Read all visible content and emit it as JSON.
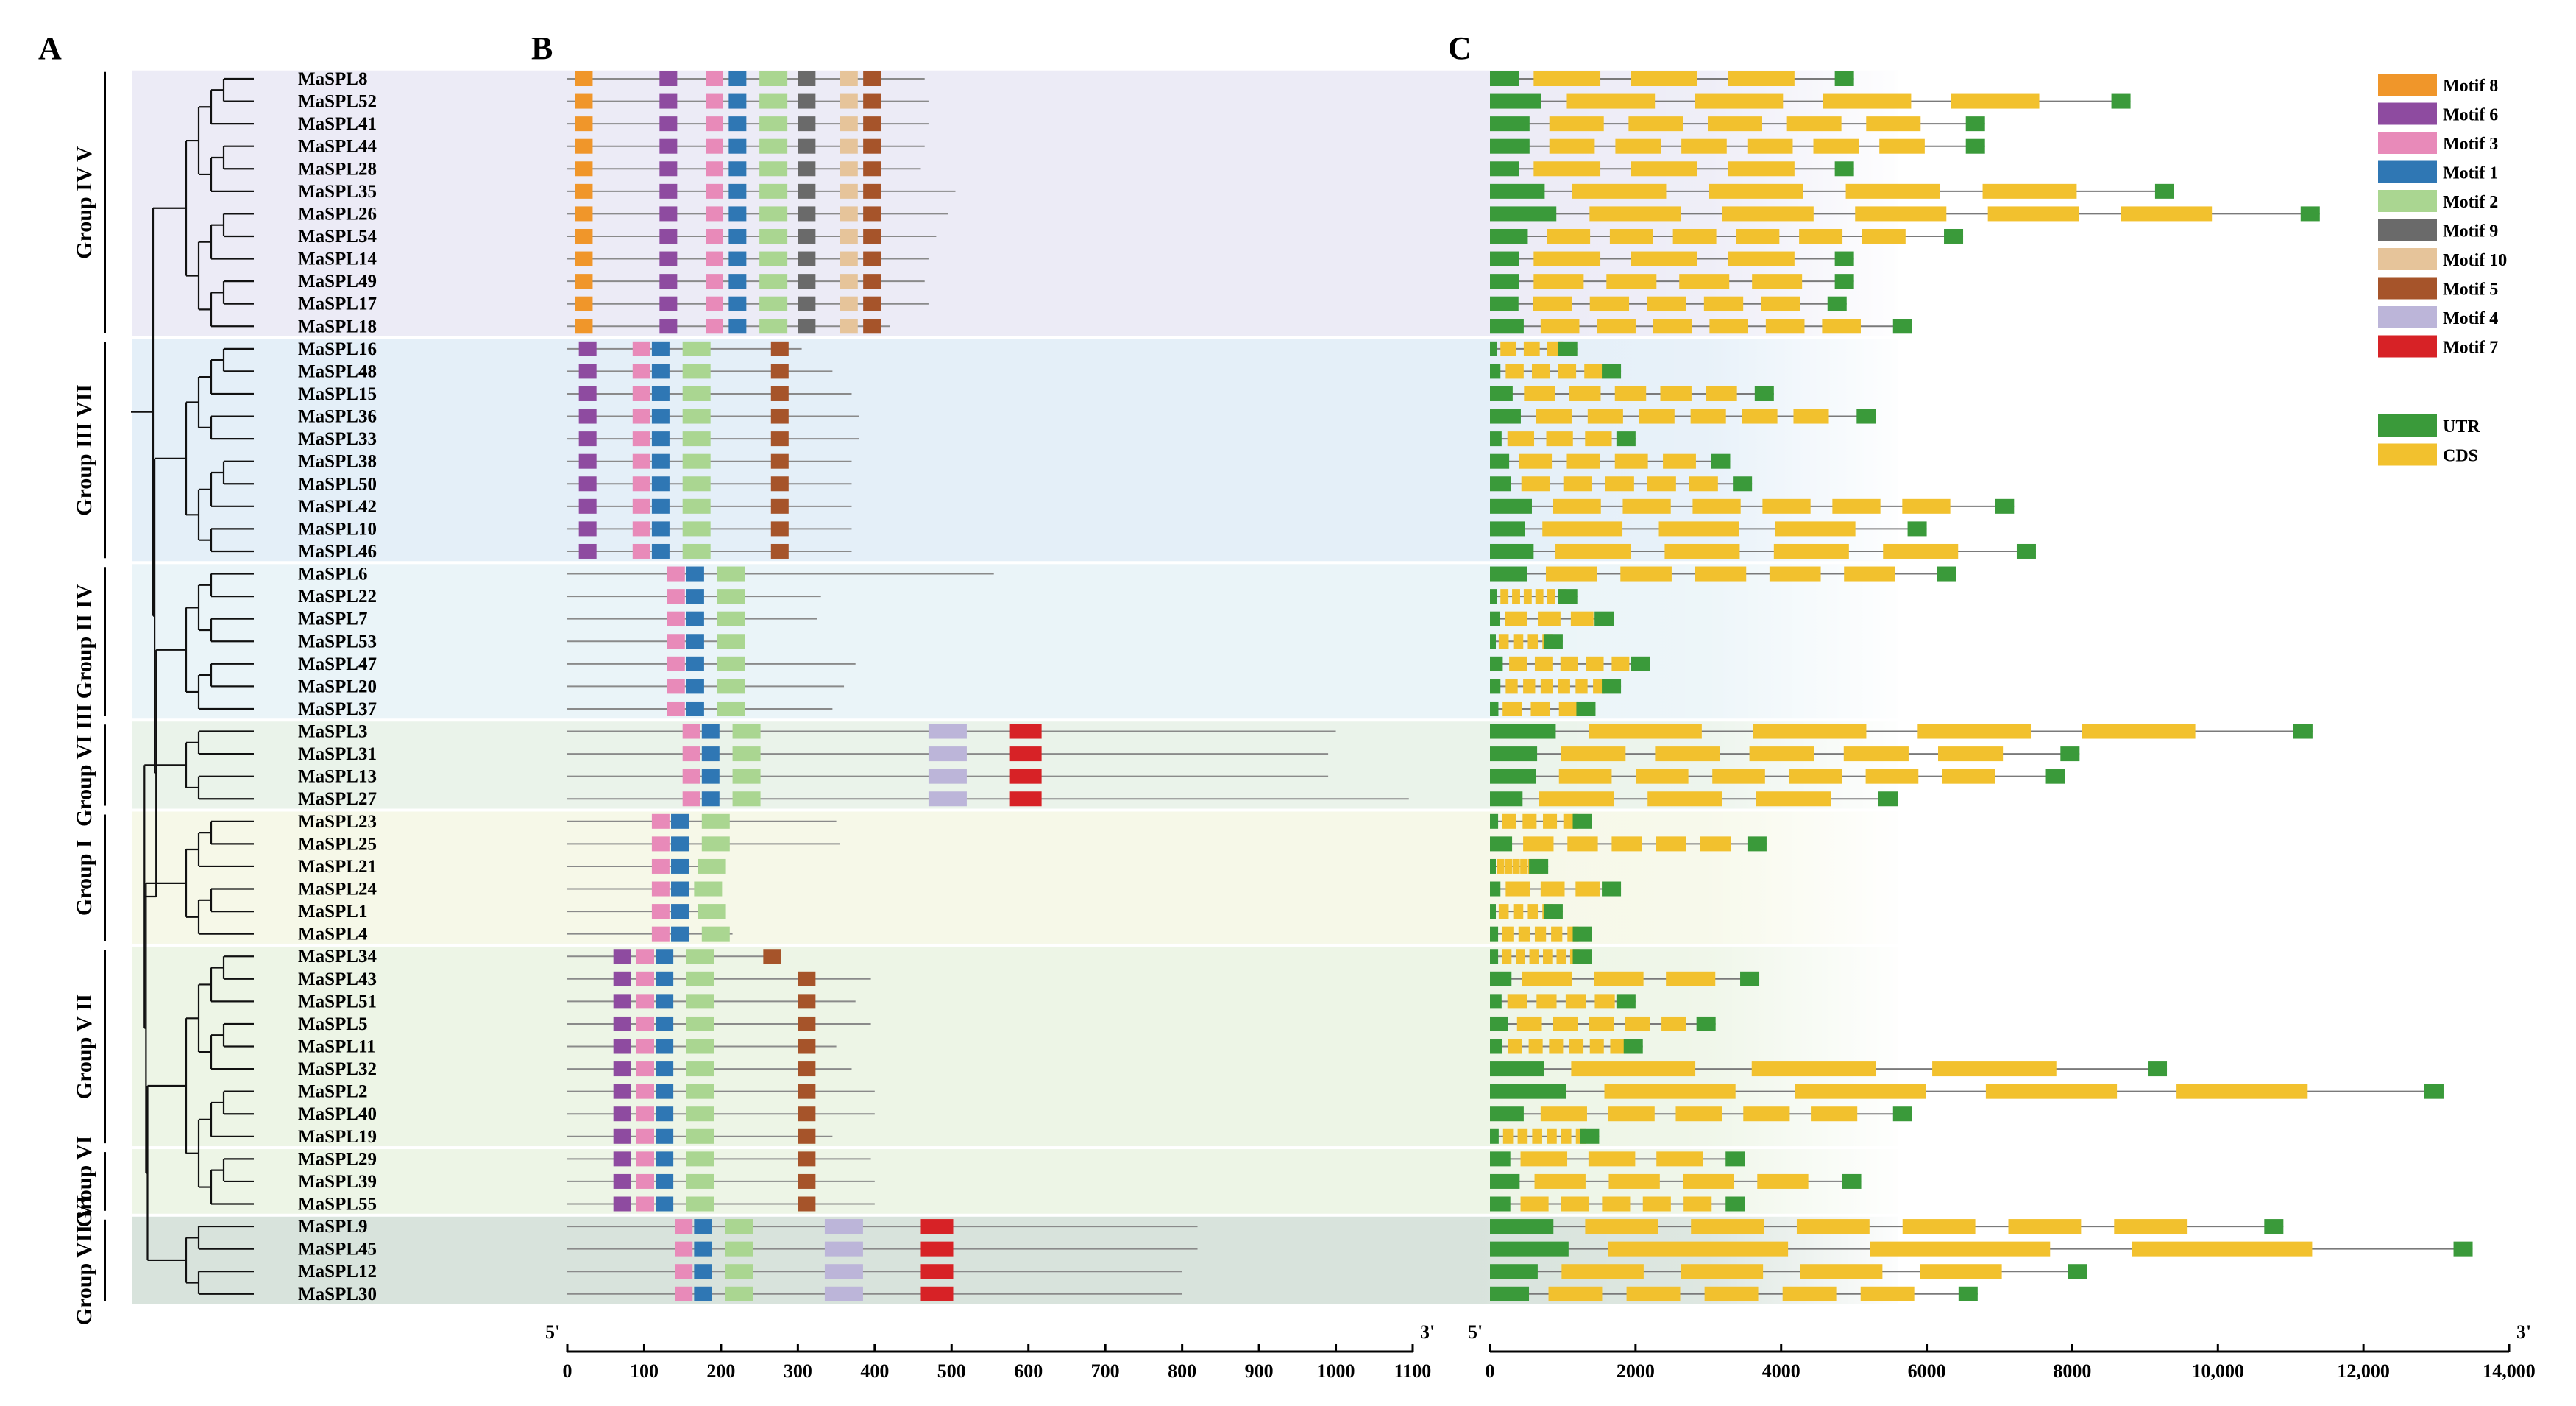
{
  "panels": {
    "a": "A",
    "b": "B",
    "c": "C"
  },
  "genes": [
    "MaSPL8",
    "MaSPL52",
    "MaSPL41",
    "MaSPL44",
    "MaSPL28",
    "MaSPL35",
    "MaSPL26",
    "MaSPL54",
    "MaSPL14",
    "MaSPL49",
    "MaSPL17",
    "MaSPL18",
    "MaSPL16",
    "MaSPL48",
    "MaSPL15",
    "MaSPL36",
    "MaSPL33",
    "MaSPL38",
    "MaSPL50",
    "MaSPL42",
    "MaSPL10",
    "MaSPL46",
    "MaSPL6",
    "MaSPL22",
    "MaSPL7",
    "MaSPL53",
    "MaSPL47",
    "MaSPL20",
    "MaSPL37",
    "MaSPL3",
    "MaSPL31",
    "MaSPL13",
    "MaSPL27",
    "MaSPL23",
    "MaSPL25",
    "MaSPL21",
    "MaSPL24",
    "MaSPL1",
    "MaSPL4",
    "MaSPL34",
    "MaSPL43",
    "MaSPL51",
    "MaSPL5",
    "MaSPL11",
    "MaSPL32",
    "MaSPL2",
    "MaSPL40",
    "MaSPL19",
    "MaSPL29",
    "MaSPL39",
    "MaSPL55",
    "MaSPL9",
    "MaSPL45",
    "MaSPL12",
    "MaSPL30"
  ],
  "groups": [
    {
      "label": "Group IV V",
      "start": 0,
      "end": 11,
      "color": "#ecebf6"
    },
    {
      "label": "Group III VII",
      "start": 12,
      "end": 21,
      "color": "#e4eff8"
    },
    {
      "label": "Group II IV",
      "start": 22,
      "end": 28,
      "color": "#eaf4f8"
    },
    {
      "label": "Group VI III",
      "start": 29,
      "end": 32,
      "color": "#eaf3ea"
    },
    {
      "label": "Group I",
      "start": 33,
      "end": 38,
      "color": "#f6f8e8"
    },
    {
      "label": "Group V II",
      "start": 39,
      "end": 47,
      "color": "#edf5e6"
    },
    {
      "label": "Group VI",
      "start": 48,
      "end": 50,
      "color": "#edf5e6"
    },
    {
      "label": "Group VII VI",
      "start": 51,
      "end": 54,
      "color": "#d8e3dc"
    }
  ],
  "legend": {
    "motifs": [
      {
        "label": "Motif 8",
        "color": "#f0962a"
      },
      {
        "label": "Motif 6",
        "color": "#8e4ba0"
      },
      {
        "label": "Motif 3",
        "color": "#e88ab9"
      },
      {
        "label": "Motif 1",
        "color": "#2f77b4"
      },
      {
        "label": "Motif 2",
        "color": "#aad691"
      },
      {
        "label": "Motif 9",
        "color": "#6a6a6a"
      },
      {
        "label": "Motif 10",
        "color": "#e6c49a"
      },
      {
        "label": "Motif 5",
        "color": "#a6542a"
      },
      {
        "label": "Motif 4",
        "color": "#bcb5d9"
      },
      {
        "label": "Motif 7",
        "color": "#d72226"
      }
    ],
    "features": [
      {
        "label": "UTR",
        "color": "#3a9a3a"
      },
      {
        "label": "CDS",
        "color": "#f2c12e"
      }
    ]
  },
  "motif_axis": {
    "ticks": [
      0,
      100,
      200,
      300,
      400,
      500,
      600,
      700,
      800,
      900,
      1000,
      1100
    ],
    "max": 1100,
    "five": "5'",
    "three": "3'"
  },
  "gene_axis": {
    "ticks": [
      "0",
      "2000",
      "4000",
      "6000",
      "8000",
      "10,000",
      "12,000",
      "14,000"
    ],
    "values": [
      0,
      2000,
      4000,
      6000,
      8000,
      10000,
      12000,
      14000
    ],
    "max": 14000,
    "five": "5'",
    "three": "3'"
  },
  "protein_lengths": [
    465,
    470,
    470,
    465,
    460,
    505,
    495,
    480,
    470,
    465,
    470,
    420,
    305,
    345,
    370,
    380,
    380,
    370,
    370,
    370,
    370,
    370,
    555,
    330,
    325,
    230,
    375,
    360,
    345,
    1000,
    990,
    990,
    1095,
    350,
    355,
    190,
    185,
    190,
    215,
    275,
    395,
    375,
    395,
    350,
    370,
    400,
    400,
    345,
    395,
    400,
    400,
    820,
    820,
    800,
    800
  ],
  "gene_lengths": [
    5000,
    8800,
    6800,
    6800,
    5000,
    9400,
    11400,
    6500,
    5000,
    5000,
    4900,
    5800,
    1200,
    1800,
    3900,
    5300,
    2000,
    3300,
    3600,
    7200,
    6000,
    7500,
    6400,
    1200,
    1700,
    1000,
    2200,
    1800,
    1450,
    11300,
    8100,
    7900,
    5600,
    1400,
    3800,
    800,
    1800,
    1000,
    1400,
    1400,
    3700,
    2000,
    3100,
    2100,
    9300,
    13100,
    5800,
    1500,
    3500,
    5100,
    3500,
    10900,
    13500,
    8200,
    6700
  ]
}
